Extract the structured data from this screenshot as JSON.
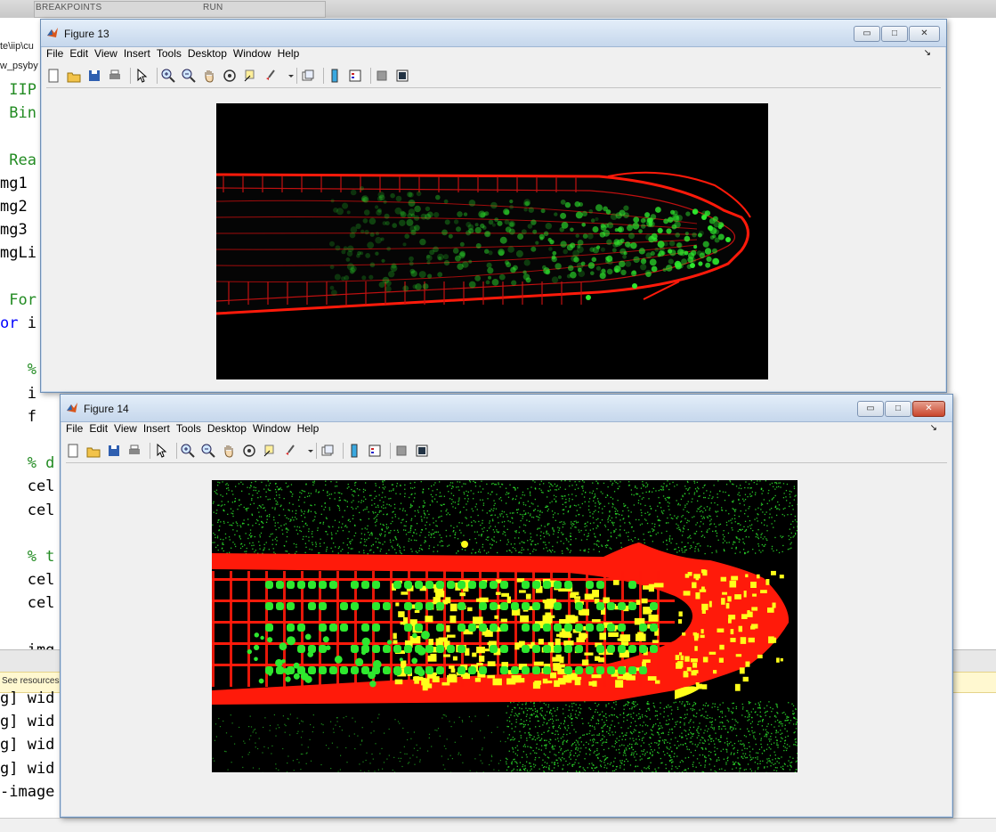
{
  "background": {
    "tabs": [
      "BREAKPOINTS",
      "RUN"
    ],
    "path_fragments": [
      "te\\iip\\cu",
      "w_psyby"
    ],
    "code_lines": [
      {
        "text": " IIP",
        "color": "green"
      },
      {
        "text": " Bin",
        "color": "green"
      },
      {
        "text": "",
        "color": "black"
      },
      {
        "text": " Rea",
        "color": "green"
      },
      {
        "text": "mg1",
        "color": "black"
      },
      {
        "text": "mg2",
        "color": "black"
      },
      {
        "text": "mg3",
        "color": "black"
      },
      {
        "text": "mgLi",
        "color": "black"
      },
      {
        "text": "",
        "color": "black"
      },
      {
        "text": " For",
        "color": "green"
      },
      {
        "text": "or i",
        "color": "mixed"
      },
      {
        "text": "",
        "color": "black"
      },
      {
        "text": "   %",
        "color": "green"
      },
      {
        "text": "   i",
        "color": "black"
      },
      {
        "text": "   f",
        "color": "black"
      },
      {
        "text": "",
        "color": "black"
      },
      {
        "text": "   % d",
        "color": "green"
      },
      {
        "text": "   cel",
        "color": "black"
      },
      {
        "text": "   cel",
        "color": "black"
      },
      {
        "text": "",
        "color": "black"
      },
      {
        "text": "   % t",
        "color": "green"
      },
      {
        "text": "   cel",
        "color": "black"
      },
      {
        "text": "   cel",
        "color": "black"
      },
      {
        "text": "",
        "color": "black"
      },
      {
        "text": "   img",
        "color": "black"
      }
    ],
    "notice": "See resources",
    "cmd_lines": [
      "g] wid",
      "g] wid",
      "g] wid",
      "g] wid",
      "-image"
    ]
  },
  "figure13": {
    "title": "Figure 13",
    "menu": [
      "File",
      "Edit",
      "View",
      "Insert",
      "Tools",
      "Desktop",
      "Window",
      "Help"
    ],
    "dock_glyph": "↘"
  },
  "figure14": {
    "title": "Figure 14",
    "menu": [
      "File",
      "Edit",
      "View",
      "Insert",
      "Tools",
      "Desktop",
      "Window",
      "Help"
    ],
    "dock_glyph": "↘"
  },
  "window_buttons": {
    "minimize": "▭",
    "maximize": "□",
    "close": "✕"
  },
  "colors": {
    "membrane_red": "#ff1a0a",
    "nucleus_green": "#2ee82e",
    "overlap_yellow": "#ffff1a",
    "titlebar_top": "#e4eef9"
  }
}
